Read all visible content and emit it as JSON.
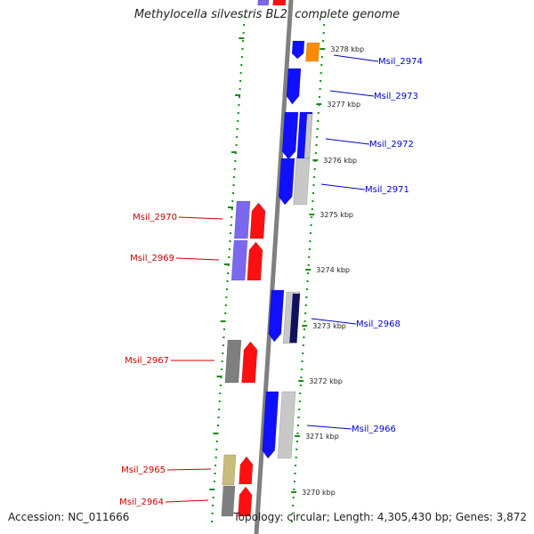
{
  "title": "Methylocella silvestris BL2, complete genome",
  "footer": {
    "accession": "Accession: NC_011666",
    "topology": "Topology: circular; Length: 4,305,430 bp; Genes: 3,872"
  },
  "colors": {
    "backbone": "#808080",
    "tick": "#1a8a1a",
    "plus_label": "#0000cc",
    "minus_label": "#cc0000",
    "blue_gene": "#1010ff",
    "red_gene": "#ff1010",
    "purple_gene": "#7b68ee",
    "gray_gene": "#7f7f7f",
    "light_gene": "#c8c8c8",
    "orange_gene": "#ff8c00",
    "khaki_gene": "#c8bd7a"
  },
  "scale": {
    "ticks": [
      {
        "label": "3278 kbp"
      },
      {
        "label": "3277 kbp"
      },
      {
        "label": "3276 kbp"
      },
      {
        "label": "3275 kbp"
      },
      {
        "label": "3274 kbp"
      },
      {
        "label": "3273 kbp"
      },
      {
        "label": "3272 kbp"
      },
      {
        "label": "3271 kbp"
      },
      {
        "label": "3270 kbp"
      }
    ]
  },
  "gene_labels": [
    {
      "text": "Msil_2974",
      "strand": "plus"
    },
    {
      "text": "Msil_2973",
      "strand": "plus"
    },
    {
      "text": "Msil_2972",
      "strand": "plus"
    },
    {
      "text": "Msil_2971",
      "strand": "plus"
    },
    {
      "text": "Msil_2970",
      "strand": "minus"
    },
    {
      "text": "Msil_2969",
      "strand": "minus"
    },
    {
      "text": "Msil_2968",
      "strand": "plus"
    },
    {
      "text": "Msil_2967",
      "strand": "minus"
    },
    {
      "text": "Msil_2966",
      "strand": "plus"
    },
    {
      "text": "Msil_2965",
      "strand": "minus"
    },
    {
      "text": "Msil_2964",
      "strand": "minus"
    }
  ]
}
